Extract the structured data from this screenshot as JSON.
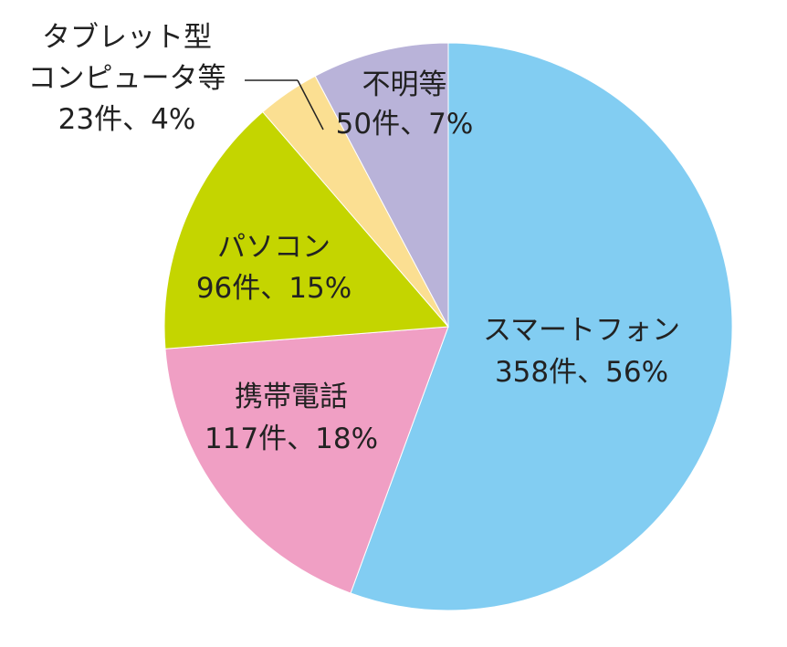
{
  "chart_data": {
    "type": "pie",
    "title": "",
    "slices": [
      {
        "category": "スマートフォン",
        "value_label": "358件、56%",
        "count": 358,
        "percent": 56,
        "color": "#82cdf2"
      },
      {
        "category": "携帯電話",
        "value_label": "117件、18%",
        "count": 117,
        "percent": 18,
        "color": "#f09fc4"
      },
      {
        "category": "パソコン",
        "value_label": "96件、15%",
        "count": 96,
        "percent": 15,
        "color": "#c4d500"
      },
      {
        "category_lines": [
          "タブレット型",
          "コンピュータ等"
        ],
        "value_label": "23件、4%",
        "count": 23,
        "percent": 4,
        "color": "#fbdf92"
      },
      {
        "category": "不明等",
        "value_label": "50件、7%",
        "count": 50,
        "percent": 7,
        "color": "#b9b3d9"
      }
    ]
  }
}
